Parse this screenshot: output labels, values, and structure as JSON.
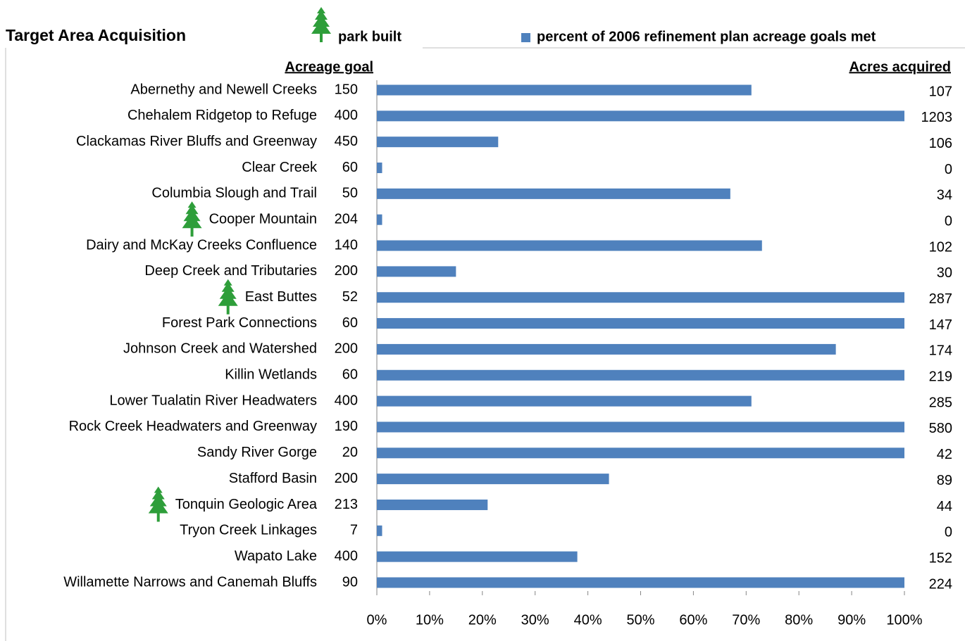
{
  "chart_data": {
    "type": "bar",
    "orientation": "horizontal",
    "title": "Target Area Acquisition",
    "park_legend": "park built",
    "series": [
      {
        "name": "percent of 2006 refinement plan acreage goals met",
        "color": "#4f81bd",
        "values": [
          71,
          100,
          23,
          1,
          67,
          1,
          73,
          15,
          100,
          100,
          87,
          100,
          71,
          100,
          100,
          44,
          21,
          1,
          38,
          100
        ]
      }
    ],
    "categories": [
      "Abernethy and Newell Creeks",
      "Chehalem Ridgetop to Refuge",
      "Clackamas River Bluffs and Greenway",
      "Clear Creek",
      "Columbia Slough and Trail",
      "Cooper Mountain",
      "Dairy and McKay Creeks Confluence",
      "Deep Creek and Tributaries",
      "East Buttes",
      "Forest Park Connections",
      "Johnson Creek and Watershed",
      "Killin Wetlands",
      "Lower Tualatin River Headwaters",
      "Rock Creek Headwaters and Greenway",
      "Sandy River Gorge",
      "Stafford Basin",
      "Tonquin Geologic Area",
      "Tryon Creek Linkages",
      "Wapato Lake",
      "Willamette Narrows and Canemah Bluffs"
    ],
    "park_built": [
      false,
      false,
      false,
      false,
      false,
      true,
      false,
      false,
      true,
      false,
      false,
      false,
      false,
      false,
      false,
      false,
      true,
      false,
      false,
      false
    ],
    "goal_header": "Acreage goal",
    "acreage_goal": [
      150,
      400,
      450,
      60,
      50,
      204,
      140,
      200,
      52,
      60,
      200,
      60,
      400,
      190,
      20,
      200,
      213,
      7,
      400,
      90
    ],
    "acquired_header": "Acres acquired",
    "acres_acquired": [
      107,
      1203,
      106,
      0,
      34,
      0,
      102,
      30,
      287,
      147,
      174,
      219,
      285,
      580,
      42,
      89,
      44,
      0,
      152,
      224
    ],
    "xlim": [
      0,
      100
    ],
    "xticks": [
      {
        "value": 0,
        "label": "0%"
      },
      {
        "value": 10,
        "label": "10%"
      },
      {
        "value": 20,
        "label": "20%"
      },
      {
        "value": 30,
        "label": "30%"
      },
      {
        "value": 40,
        "label": "40%"
      },
      {
        "value": 50,
        "label": "50%"
      },
      {
        "value": 60,
        "label": "60%"
      },
      {
        "value": 70,
        "label": "70%"
      },
      {
        "value": 80,
        "label": "80%"
      },
      {
        "value": 90,
        "label": "90%"
      },
      {
        "value": 100,
        "label": "100%"
      }
    ],
    "tree_color": "#2e9e3a"
  }
}
